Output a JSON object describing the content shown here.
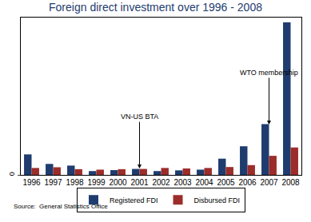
{
  "chart_data": {
    "type": "bar",
    "title": "Foreign direct investment over 1996 - 2008",
    "categories": [
      "1996",
      "1997",
      "1998",
      "1999",
      "2000",
      "2001",
      "2002",
      "2003",
      "2004",
      "2005",
      "2006",
      "2007",
      "2008"
    ],
    "series": [
      {
        "name": "Registered FDI",
        "color": "#1f3c6e",
        "values": [
          8.6,
          4.6,
          3.9,
          1.6,
          2.0,
          2.5,
          1.6,
          1.9,
          2.2,
          6.8,
          12.0,
          21.3,
          64.0
        ]
      },
      {
        "name": "Disbursed FDI",
        "color": "#9b2d2a",
        "values": [
          2.9,
          3.2,
          2.4,
          2.2,
          2.4,
          2.5,
          2.9,
          2.7,
          2.9,
          3.3,
          4.1,
          8.0,
          11.5
        ]
      }
    ],
    "ylim": [
      0,
      66
    ],
    "yticks": [
      0
    ],
    "grid": false,
    "legend": "bottom",
    "annotations": [
      {
        "text": "VN-US BTA",
        "category": "2001"
      },
      {
        "text": "WTO membership",
        "category": "2007"
      }
    ],
    "source": "Source:  General Statistics Office"
  }
}
